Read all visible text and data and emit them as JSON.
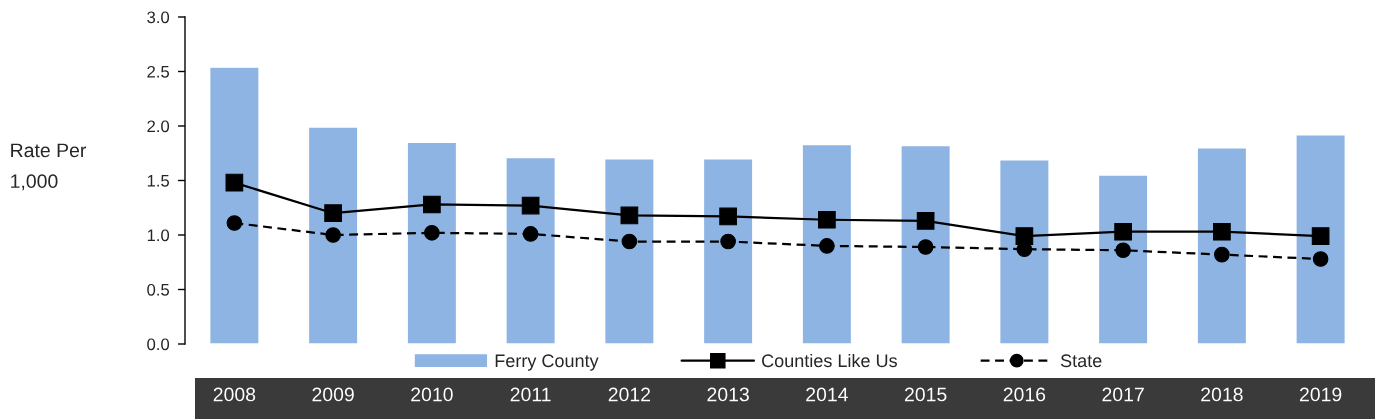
{
  "chart_data": {
    "type": "bar",
    "ylabel": "Rate Per\n1,000",
    "categories": [
      "2008",
      "2009",
      "2010",
      "2011",
      "2012",
      "2013",
      "2014",
      "2015",
      "2016",
      "2017",
      "2018",
      "2019"
    ],
    "series": [
      {
        "name": "Ferry County",
        "color": "#8eb4e3",
        "values": [
          2.54,
          1.99,
          1.85,
          1.71,
          1.7,
          1.7,
          1.83,
          1.82,
          1.69,
          1.55,
          1.8,
          1.92
        ]
      },
      {
        "name": "Counties Like Us",
        "type": "line",
        "color": "#000000",
        "marker": "square",
        "line_style": "solid",
        "values": [
          1.48,
          1.2,
          1.28,
          1.27,
          1.18,
          1.17,
          1.14,
          1.13,
          0.99,
          1.03,
          1.03,
          0.99
        ]
      },
      {
        "name": "State",
        "type": "line",
        "color": "#000000",
        "marker": "circle",
        "line_style": "dashed",
        "values": [
          1.11,
          1.0,
          1.02,
          1.01,
          0.94,
          0.94,
          0.9,
          0.89,
          0.87,
          0.86,
          0.82,
          0.78
        ]
      }
    ],
    "ylim": [
      0,
      3.0
    ],
    "yticks": [
      {
        "value": 0,
        "label": "0.0"
      },
      {
        "value": 0.5,
        "label": "0.5"
      },
      {
        "value": 1,
        "label": "1.0"
      },
      {
        "value": 1.5,
        "label": "1.5"
      },
      {
        "value": 2,
        "label": "2.0"
      },
      {
        "value": 2.5,
        "label": "2.5"
      },
      {
        "value": 3,
        "label": "3.0"
      }
    ],
    "grid": false,
    "legend": "bottom"
  }
}
